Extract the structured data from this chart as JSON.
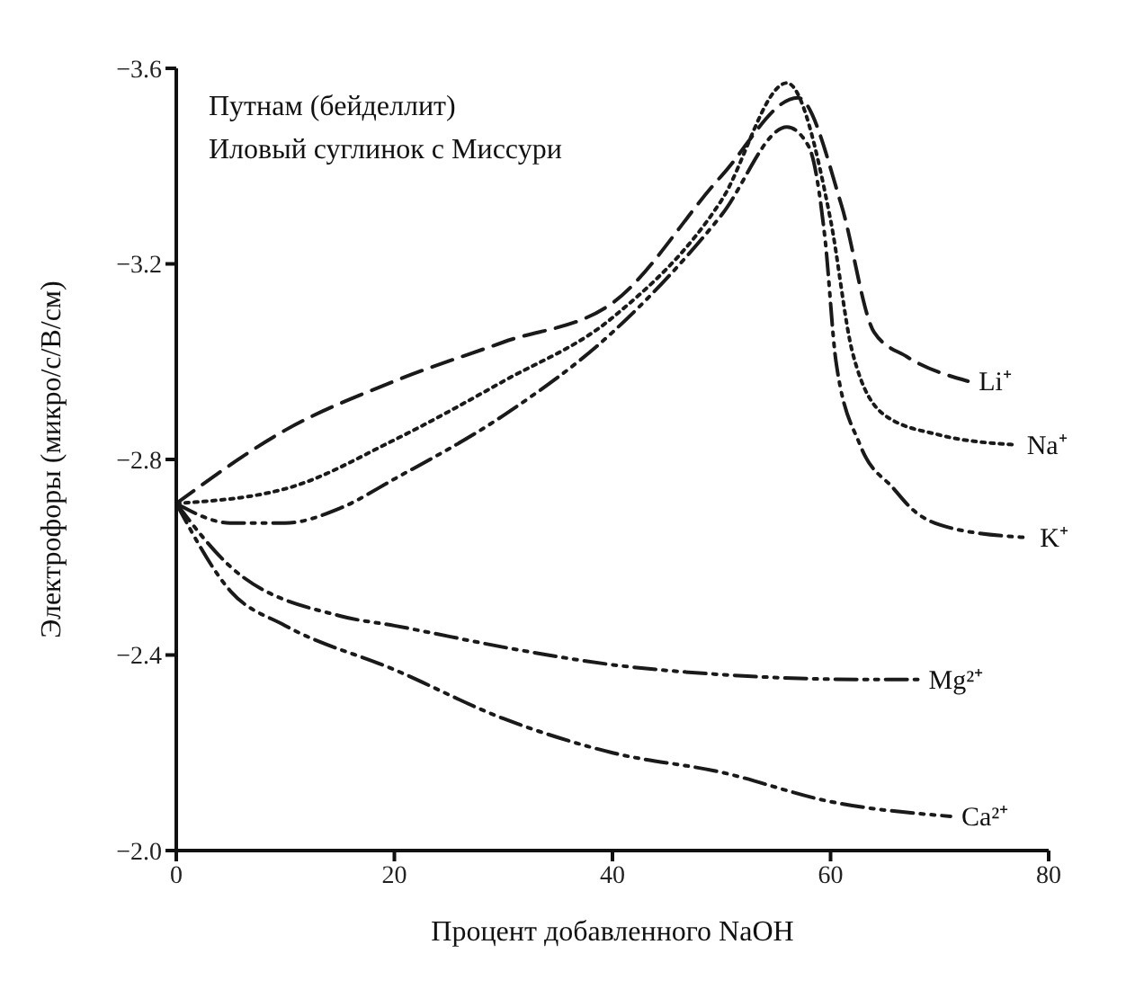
{
  "chart_data": {
    "type": "line",
    "title": null,
    "xlabel": "Процент добавленного NaOH",
    "ylabel": "Электрофоры (микро/с/В/см)",
    "annotations": [
      "Путнам (бейделлит)",
      "Иловый суглинок с Миссури"
    ],
    "xlim": [
      0,
      80
    ],
    "xticks": [
      0,
      20,
      40,
      60,
      80
    ],
    "ylim": [
      -2.0,
      -3.6
    ],
    "yticks": [
      {
        "value": -2.0,
        "label": "−2.0"
      },
      {
        "value": -2.4,
        "label": "−2.4"
      },
      {
        "value": -2.8,
        "label": "−2.8"
      },
      {
        "value": -3.2,
        "label": "−3.2"
      },
      {
        "value": -3.6,
        "label": "−3.6"
      }
    ],
    "grid": false,
    "legend": false,
    "marker": "none",
    "series": [
      {
        "name": "Li⁺",
        "color": "#1a1a1a",
        "line_style": "dashed",
        "x": [
          0,
          10,
          20,
          30,
          40,
          50,
          57,
          61,
          64,
          67,
          72.6
        ],
        "values": [
          -2.71,
          -2.86,
          -2.96,
          -3.04,
          -3.12,
          -3.38,
          -3.54,
          -3.32,
          -3.06,
          -3.01,
          -2.96
        ]
      },
      {
        "name": "Na⁺",
        "color": "#1a1a1a",
        "line_style": "dotted",
        "x": [
          0,
          10,
          20,
          30,
          40,
          50,
          56,
          60,
          62,
          65,
          70,
          77
        ],
        "values": [
          -2.71,
          -2.74,
          -2.84,
          -2.96,
          -3.09,
          -3.33,
          -3.57,
          -3.29,
          -3.02,
          -2.89,
          -2.85,
          -2.83
        ]
      },
      {
        "name": "K⁺",
        "color": "#1a1a1a",
        "line_style": "dashdot",
        "x": [
          0,
          5,
          10,
          15,
          20,
          30,
          40,
          50,
          56,
          58,
          59.5,
          60.5,
          62.7,
          65.8,
          67.4,
          71,
          78.2
        ],
        "values": [
          -2.71,
          -2.67,
          -2.67,
          -2.7,
          -2.76,
          -2.89,
          -3.06,
          -3.3,
          -3.48,
          -3.44,
          -3.25,
          -3.0,
          -2.83,
          -2.74,
          -2.7,
          -2.66,
          -2.64
        ]
      },
      {
        "name": "Mg²⁺",
        "color": "#1a1a1a",
        "line_style": "dashdot",
        "x": [
          0,
          5,
          15,
          20,
          31.5,
          40,
          50,
          62.7,
          68
        ],
        "values": [
          -2.71,
          -2.58,
          -2.48,
          -2.46,
          -2.41,
          -2.38,
          -2.36,
          -2.35,
          -2.35
        ]
      },
      {
        "name": "Ca²⁺",
        "color": "#1a1a1a",
        "line_style": "dashdot",
        "x": [
          0,
          5,
          10,
          20,
          30,
          40,
          50,
          60,
          71
        ],
        "values": [
          -2.71,
          -2.53,
          -2.46,
          -2.37,
          -2.27,
          -2.2,
          -2.16,
          -2.1,
          -2.07
        ]
      }
    ]
  }
}
